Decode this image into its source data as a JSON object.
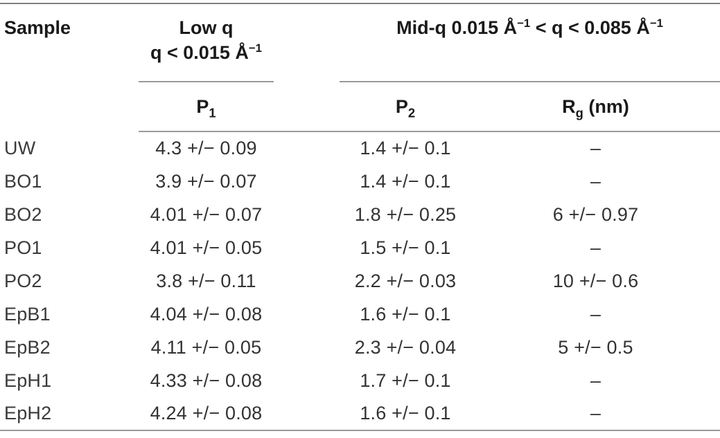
{
  "table": {
    "header": {
      "sample": "Sample",
      "low_q": {
        "line1": "Low q",
        "line2_pre": "q < 0.015 Å",
        "line2_sup": "−1"
      },
      "mid_q": {
        "pre": "Mid-q 0.015 Å",
        "sup1": "−1",
        "mid": " < q < 0.085 Å",
        "sup2": "−1"
      },
      "p1": {
        "base": "P",
        "sub": "1"
      },
      "p2": {
        "base": "P",
        "sub": "2"
      },
      "rg": {
        "base": "R",
        "sub": "g",
        "suffix": " (nm)"
      }
    },
    "rows": [
      {
        "sample": "UW",
        "p1": "4.3 +/− 0.09",
        "p2": "1.4 +/− 0.1",
        "rg": "–"
      },
      {
        "sample": "BO1",
        "p1": "3.9 +/− 0.07",
        "p2": "1.4 +/− 0.1",
        "rg": "–"
      },
      {
        "sample": "BO2",
        "p1": "4.01 +/− 0.07",
        "p2": "1.8 +/− 0.25",
        "rg": "6 +/− 0.97"
      },
      {
        "sample": "PO1",
        "p1": "4.01 +/− 0.05",
        "p2": "1.5 +/− 0.1",
        "rg": "–"
      },
      {
        "sample": "PO2",
        "p1": "3.8 +/− 0.11",
        "p2": "2.2 +/− 0.03",
        "rg": "10 +/− 0.6"
      },
      {
        "sample": "EpB1",
        "p1": "4.04 +/− 0.08",
        "p2": "1.6 +/− 0.1",
        "rg": "–"
      },
      {
        "sample": "EpB2",
        "p1": "4.11 +/− 0.05",
        "p2": "2.3 +/− 0.04",
        "rg": "5 +/− 0.5"
      },
      {
        "sample": "EpH1",
        "p1": "4.33 +/− 0.08",
        "p2": "1.7 +/− 0.1",
        "rg": "–"
      },
      {
        "sample": "EpH2",
        "p1": "4.24 +/− 0.08",
        "p2": "1.6 +/− 0.1",
        "rg": "–"
      }
    ],
    "colors": {
      "rule_top": "#7f7f7f",
      "rule_inner": "#9a9a9a",
      "header_text": "#1a1a1a",
      "data_text": "#333333"
    }
  }
}
